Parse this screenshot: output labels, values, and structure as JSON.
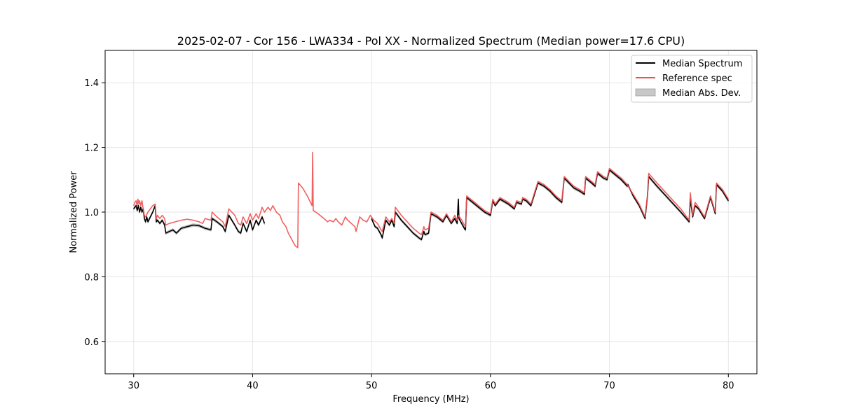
{
  "chart_data": {
    "type": "line",
    "title": "2025-02-07 - Cor 156 - LWA334 - Pol XX - Normalized Spectrum (Median power=17.6 CPU)",
    "xlabel": "Frequency (MHz)",
    "ylabel": "Normalized Power",
    "xlim": [
      27.6,
      82.4
    ],
    "ylim": [
      0.5,
      1.5
    ],
    "xticks": [
      30,
      40,
      50,
      60,
      70,
      80
    ],
    "yticks": [
      0.6,
      0.8,
      1.0,
      1.2,
      1.4
    ],
    "xtick_labels": [
      "30",
      "40",
      "50",
      "60",
      "70",
      "80"
    ],
    "ytick_labels": [
      "0.6",
      "0.8",
      "1.0",
      "1.2",
      "1.4"
    ],
    "grid": true,
    "legend_position": "top-right",
    "legend": [
      {
        "label": "Median Spectrum",
        "kind": "line",
        "color": "#000000"
      },
      {
        "label": "Reference spec",
        "kind": "line",
        "color": "#f05050"
      },
      {
        "label": "Median Abs. Dev.",
        "kind": "patch",
        "color": "#c8c8c8"
      }
    ],
    "series": [
      {
        "name": "Median Spectrum",
        "color": "#000000",
        "segments": [
          {
            "x": [
              30.0,
              30.2,
              30.3,
              30.4,
              30.5,
              30.6,
              30.7,
              30.8,
              30.9,
              31.0,
              31.1,
              31.2,
              31.4,
              31.6,
              31.8,
              31.9,
              32.0,
              32.2,
              32.4,
              32.6,
              32.7,
              33.0,
              33.3,
              33.6,
              34.0,
              34.5,
              35.0,
              35.5,
              36.0,
              36.5,
              36.6,
              37.0,
              37.5,
              37.7,
              38.0,
              38.5,
              38.8,
              39.0,
              39.2,
              39.5,
              39.8,
              40.0,
              40.3,
              40.5,
              40.8,
              41.0
            ],
            "y": [
              1.01,
              1.02,
              1.005,
              1.02,
              1.0,
              1.015,
              1.0,
              1.01,
              0.98,
              0.97,
              0.985,
              0.97,
              0.985,
              1.0,
              1.02,
              0.97,
              0.975,
              0.965,
              0.975,
              0.96,
              0.935,
              0.94,
              0.945,
              0.935,
              0.95,
              0.955,
              0.96,
              0.958,
              0.95,
              0.945,
              0.98,
              0.97,
              0.955,
              0.94,
              0.99,
              0.96,
              0.94,
              0.935,
              0.965,
              0.94,
              0.975,
              0.945,
              0.975,
              0.96,
              0.985,
              0.965
            ]
          },
          {
            "x": [
              50.0,
              50.3,
              50.5,
              50.8,
              50.9,
              51.2,
              51.5,
              51.7,
              51.9,
              52.0,
              52.5,
              53.0,
              53.5,
              54.0,
              54.2,
              54.4,
              54.5,
              54.8,
              55.0,
              55.5,
              56.0,
              56.3,
              56.7,
              57.0,
              57.2,
              57.3,
              57.35,
              57.8,
              57.9,
              58.0,
              58.5,
              59.0,
              59.5,
              60.0,
              60.2,
              60.4,
              60.8,
              61.5,
              62.0,
              62.2,
              62.6,
              62.7,
              63.0,
              63.4,
              64.0,
              64.5,
              65.0,
              65.5,
              66.0,
              66.2,
              67.0,
              67.5,
              67.9,
              68.0,
              68.5,
              68.8,
              69.0,
              69.5,
              69.8,
              70.0,
              71.0,
              71.5,
              71.55,
              72.0,
              72.5,
              73.0,
              73.2,
              73.3,
              74.0,
              75.0,
              76.0,
              76.7,
              76.8,
              77.0,
              77.2,
              77.5,
              78.0,
              78.5,
              78.9,
              79.0,
              79.5,
              80.0
            ],
            "y": [
              0.98,
              0.955,
              0.95,
              0.93,
              0.92,
              0.975,
              0.96,
              0.975,
              0.955,
              1.0,
              0.975,
              0.955,
              0.935,
              0.92,
              0.915,
              0.94,
              0.93,
              0.935,
              0.995,
              0.985,
              0.97,
              0.99,
              0.965,
              0.98,
              0.965,
              1.04,
              0.98,
              0.95,
              0.945,
              1.045,
              1.03,
              1.015,
              1.0,
              0.99,
              1.035,
              1.02,
              1.04,
              1.025,
              1.01,
              1.03,
              1.025,
              1.04,
              1.035,
              1.02,
              1.09,
              1.08,
              1.065,
              1.045,
              1.03,
              1.105,
              1.075,
              1.065,
              1.055,
              1.105,
              1.09,
              1.08,
              1.12,
              1.105,
              1.1,
              1.13,
              1.1,
              1.08,
              1.085,
              1.05,
              1.02,
              0.98,
              1.05,
              1.11,
              1.08,
              1.04,
              1.0,
              0.97,
              1.04,
              0.985,
              1.02,
              1.01,
              0.98,
              1.045,
              0.995,
              1.085,
              1.065,
              1.035
            ]
          }
        ]
      },
      {
        "name": "Reference spec",
        "color": "#f05050",
        "segments": [
          {
            "x": [
              30.0,
              30.1,
              30.2,
              30.3,
              30.35,
              30.45,
              30.5,
              30.6,
              30.7,
              30.8,
              30.9,
              31.0,
              31.2,
              31.4,
              31.6,
              31.8,
              31.9,
              32.0,
              32.2,
              32.4,
              32.6,
              32.7,
              33.0,
              33.5,
              34.0,
              34.5,
              35.0,
              35.5,
              35.8,
              36.0,
              36.5,
              36.6,
              37.0,
              37.5,
              37.7,
              38.0,
              38.5,
              38.8,
              39.0,
              39.2,
              39.5,
              39.8,
              40.0,
              40.3,
              40.5,
              40.8,
              41.0,
              41.3,
              41.5,
              41.7,
              42.0,
              42.3,
              42.5,
              42.8,
              43.0,
              43.3,
              43.6,
              43.8,
              43.85,
              44.2,
              44.6,
              45.0,
              45.05,
              45.1,
              45.5,
              46.0,
              46.3,
              46.5,
              46.8,
              47.0,
              47.2,
              47.5,
              47.8,
              48.0,
              48.3,
              48.6,
              48.7,
              49.0,
              49.3,
              49.6,
              49.9,
              50.2,
              50.5,
              50.8,
              50.9,
              51.2,
              51.5,
              51.7,
              51.9,
              52.0,
              52.5,
              53.0,
              53.5,
              54.0,
              54.2,
              54.4,
              54.5,
              54.8,
              55.0,
              55.5,
              56.0,
              56.3,
              56.7,
              57.0,
              57.2,
              57.3,
              57.6,
              57.8,
              57.9,
              58.0,
              58.5,
              59.0,
              59.5,
              60.0,
              60.2,
              60.4,
              60.8,
              61.5,
              62.0,
              62.2,
              62.6,
              62.7,
              63.0,
              63.4,
              64.0,
              64.5,
              65.0,
              65.5,
              66.0,
              66.2,
              67.0,
              67.5,
              67.9,
              68.0,
              68.5,
              68.8,
              69.0,
              69.5,
              69.8,
              70.0,
              71.0,
              71.5,
              72.0,
              72.5,
              73.0,
              73.2,
              73.3,
              74.0,
              75.0,
              76.0,
              76.7,
              76.8,
              77.0,
              77.2,
              77.5,
              78.0,
              78.5,
              78.9,
              79.0,
              79.5,
              80.0
            ],
            "y": [
              1.02,
              1.03,
              1.035,
              1.02,
              1.04,
              1.025,
              1.035,
              1.02,
              1.035,
              1.01,
              0.99,
              0.985,
              1.0,
              1.01,
              1.02,
              1.025,
              0.98,
              0.99,
              0.98,
              0.99,
              0.98,
              0.96,
              0.965,
              0.97,
              0.975,
              0.978,
              0.975,
              0.97,
              0.965,
              0.98,
              0.975,
              1.0,
              0.985,
              0.97,
              0.955,
              1.01,
              0.99,
              0.965,
              0.96,
              0.985,
              0.965,
              0.995,
              0.975,
              0.995,
              0.98,
              1.015,
              1.0,
              1.015,
              1.005,
              1.02,
              1.0,
              0.99,
              0.97,
              0.955,
              0.935,
              0.915,
              0.895,
              0.89,
              1.09,
              1.075,
              1.05,
              1.02,
              1.185,
              1.005,
              0.995,
              0.98,
              0.97,
              0.975,
              0.97,
              0.98,
              0.97,
              0.96,
              0.985,
              0.975,
              0.965,
              0.955,
              0.94,
              0.985,
              0.975,
              0.97,
              0.99,
              0.975,
              0.965,
              0.945,
              0.94,
              0.985,
              0.97,
              0.98,
              0.965,
              1.015,
              0.99,
              0.97,
              0.95,
              0.935,
              0.93,
              0.955,
              0.945,
              0.95,
              1.0,
              0.99,
              0.975,
              0.995,
              0.97,
              0.99,
              0.975,
              0.99,
              0.975,
              0.96,
              0.955,
              1.05,
              1.035,
              1.02,
              1.005,
              0.995,
              1.04,
              1.025,
              1.045,
              1.03,
              1.015,
              1.035,
              1.03,
              1.045,
              1.04,
              1.025,
              1.095,
              1.085,
              1.07,
              1.05,
              1.035,
              1.11,
              1.08,
              1.07,
              1.06,
              1.11,
              1.095,
              1.085,
              1.125,
              1.11,
              1.105,
              1.135,
              1.105,
              1.085,
              1.055,
              1.025,
              0.985,
              1.055,
              1.12,
              1.09,
              1.05,
              1.01,
              0.975,
              1.06,
              0.99,
              1.03,
              1.015,
              0.985,
              1.05,
              1.0,
              1.09,
              1.07,
              1.04
            ]
          }
        ]
      }
    ]
  }
}
